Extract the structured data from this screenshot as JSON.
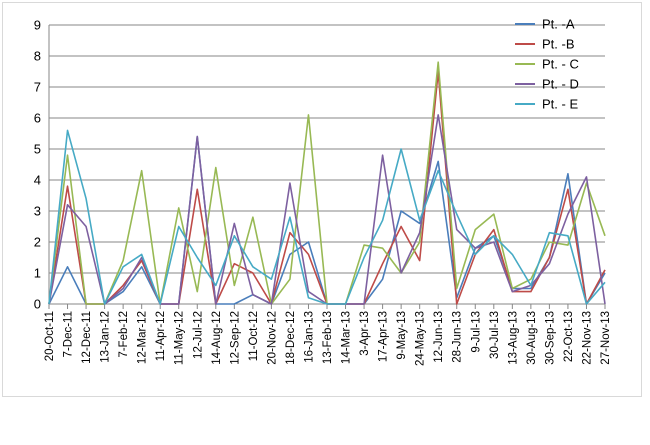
{
  "chart_data": {
    "type": "line",
    "title": "",
    "xlabel": "",
    "ylabel": "",
    "ylim": [
      0,
      9
    ],
    "yticks": [
      "0",
      "1",
      "2",
      "3",
      "4",
      "5",
      "6",
      "7",
      "8",
      "9"
    ],
    "grid": "horizontal",
    "legend_position": "top-right",
    "x": [
      "20-Oct-11",
      "7-Dec-11",
      "12-Dec-11",
      "13-Jan-12",
      "7-Feb-12",
      "12-Mar-12",
      "11-Apr-12",
      "11-May-12",
      "12-Jul-12",
      "14-Aug-12",
      "12-Sep-12",
      "11-Oct-12",
      "20-Nov-12",
      "18-Dec-12",
      "16-Jan-13",
      "13-Feb-13",
      "14-Mar-13",
      "3-Apr-13",
      "17-Apr-13",
      "9-May-13",
      "24-May-13",
      "12-Jun-13",
      "28-Jun-13",
      "9-Jul-13",
      "30-Jul-13",
      "13-Aug-13",
      "30-Aug-13",
      "30-Sep-13",
      "22-Oct-13",
      "22-Nov-13",
      "27-Nov-13"
    ],
    "x_positions": [
      0,
      1,
      2,
      3,
      4,
      5,
      6,
      7,
      8,
      9,
      10,
      11,
      12,
      13,
      14,
      15,
      16,
      17,
      18,
      19,
      20,
      21,
      22,
      23,
      24,
      25,
      26,
      27,
      28,
      29,
      30
    ],
    "series": [
      {
        "name": "Pt. -A",
        "color": "#4a7ebb",
        "x": [
          0,
          1,
          2,
          3,
          4,
          5,
          6,
          7,
          8,
          9,
          10,
          11,
          12,
          13,
          14,
          15,
          16,
          17,
          18,
          19,
          20,
          21,
          22,
          23,
          24,
          25,
          26,
          27,
          28,
          29,
          30
        ],
        "values": [
          0,
          1.2,
          0,
          0,
          0.4,
          1.2,
          0,
          0,
          5.4,
          0,
          0,
          0.3,
          0,
          1.6,
          2.0,
          0,
          0,
          0,
          0.8,
          3.0,
          2.6,
          4.6,
          0.2,
          1.8,
          2.2,
          0.5,
          0.5,
          1.5,
          4.2,
          0,
          1.0
        ]
      },
      {
        "name": "Pt. -B",
        "color": "#be4b48",
        "x": [
          0,
          1,
          2,
          3,
          4,
          5,
          6,
          7,
          8,
          9,
          10,
          11,
          12,
          13,
          14,
          15,
          16,
          17,
          18,
          19,
          20,
          21,
          22,
          23,
          24,
          25,
          26,
          27,
          28,
          29,
          30
        ],
        "values": [
          0,
          3.8,
          0,
          0,
          0.6,
          1.4,
          0,
          0,
          3.7,
          0,
          1.3,
          1.0,
          0,
          2.3,
          1.6,
          0,
          0,
          0,
          1.3,
          2.5,
          1.4,
          7.5,
          0,
          1.6,
          2.4,
          0.4,
          0.4,
          1.5,
          3.7,
          0,
          1.1
        ]
      },
      {
        "name": "Pt. - C",
        "color": "#98b954",
        "x": [
          0,
          1,
          2,
          3,
          4,
          5,
          6,
          7,
          8,
          9,
          10,
          11,
          12,
          13,
          14,
          15,
          16,
          17,
          18,
          19,
          20,
          21,
          22,
          23,
          24,
          25,
          26,
          27,
          28,
          29,
          30
        ],
        "values": [
          0,
          4.8,
          0,
          0,
          1.4,
          4.3,
          0,
          3.1,
          0.4,
          4.4,
          0.6,
          2.8,
          0,
          0.8,
          6.1,
          0,
          0,
          1.9,
          1.8,
          1.0,
          2.0,
          7.8,
          0.5,
          2.4,
          2.9,
          0.5,
          0.8,
          2.0,
          1.9,
          3.9,
          2.2
        ]
      },
      {
        "name": "Pt. - D",
        "color": "#7d60a0",
        "x": [
          0,
          1,
          2,
          3,
          4,
          5,
          6,
          7,
          8,
          9,
          10,
          11,
          12,
          13,
          14,
          15,
          16,
          17,
          18,
          19,
          20,
          21,
          22,
          23,
          24,
          25,
          26,
          27,
          28,
          29,
          30
        ],
        "values": [
          0,
          3.2,
          2.5,
          0,
          0.5,
          1.5,
          0,
          0,
          5.4,
          0,
          2.6,
          0.3,
          0,
          3.9,
          0.4,
          0,
          0,
          0,
          4.8,
          1.0,
          2.3,
          6.1,
          2.4,
          1.8,
          2.0,
          0.4,
          0.6,
          1.3,
          2.9,
          4.1,
          0
        ]
      },
      {
        "name": "Pt. - E",
        "color": "#46aac5",
        "x": [
          0,
          1,
          2,
          3,
          4,
          5,
          6,
          7,
          8,
          9,
          10,
          11,
          12,
          13,
          14,
          15,
          16,
          17,
          18,
          19,
          20,
          21,
          22,
          23,
          24,
          25,
          26,
          27,
          28,
          29,
          30
        ],
        "values": [
          0,
          5.6,
          3.4,
          0,
          1.2,
          1.6,
          0,
          2.5,
          1.5,
          0.6,
          2.2,
          1.2,
          0.8,
          2.8,
          0.2,
          0,
          0,
          1.5,
          2.7,
          5.0,
          2.7,
          4.3,
          2.9,
          1.6,
          2.2,
          1.6,
          0.6,
          2.3,
          2.2,
          0,
          0.7
        ]
      }
    ]
  }
}
